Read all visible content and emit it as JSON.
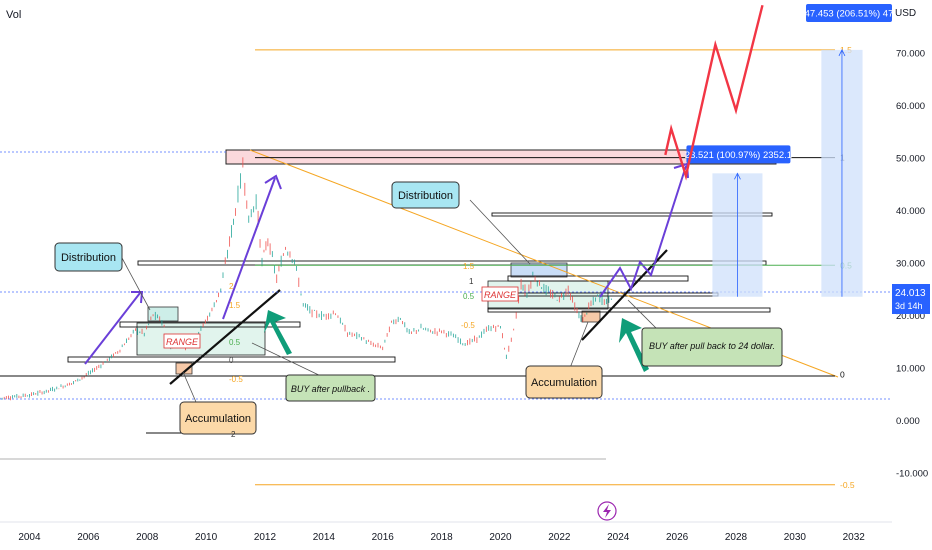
{
  "indicator_label": "Vol",
  "currency": "USD",
  "chart_data": {
    "type": "line",
    "title": "",
    "xlabel": "",
    "ylabel": "",
    "xlim": [
      2003.0,
      2033.3
    ],
    "ylim": [
      -19.0,
      80.0
    ],
    "x_ticks": [
      "2004",
      "2006",
      "2008",
      "2010",
      "2012",
      "2014",
      "2016",
      "2018",
      "2020",
      "2022",
      "2024",
      "2026",
      "2028",
      "2030",
      "2032"
    ],
    "y_ticks": [
      "70.000",
      "60.000",
      "50.000",
      "40.000",
      "30.000",
      "20.000",
      "10.000",
      "0.000",
      "-10.000"
    ],
    "last_price": {
      "value": 24.013,
      "label": "24.013",
      "countdown": "3d 14h"
    },
    "series": [
      {
        "values": [
          [
            2003.0,
            4.2
          ],
          [
            2003.5,
            4.5
          ],
          [
            2004.0,
            4.8
          ],
          [
            2004.5,
            5.4
          ],
          [
            2005.0,
            6.2
          ],
          [
            2005.5,
            7.2
          ],
          [
            2006.0,
            8.8
          ],
          [
            2006.5,
            10.8
          ],
          [
            2007.0,
            13.0
          ],
          [
            2007.3,
            15.0
          ],
          [
            2007.6,
            17.2
          ],
          [
            2007.9,
            16.5
          ],
          [
            2008.2,
            20.0
          ],
          [
            2008.5,
            19.0
          ],
          [
            2008.8,
            13.5
          ],
          [
            2009.0,
            15.0
          ],
          [
            2009.3,
            13.8
          ],
          [
            2009.6,
            15.8
          ],
          [
            2009.9,
            18.0
          ],
          [
            2010.2,
            21.0
          ],
          [
            2010.5,
            25.0
          ],
          [
            2010.8,
            34.0
          ],
          [
            2011.0,
            40.0
          ],
          [
            2011.25,
            48.5
          ],
          [
            2011.45,
            38.0
          ],
          [
            2011.7,
            42.0
          ],
          [
            2011.9,
            30.0
          ],
          [
            2012.1,
            34.5
          ],
          [
            2012.4,
            27.0
          ],
          [
            2012.7,
            33.0
          ],
          [
            2013.0,
            30.5
          ],
          [
            2013.3,
            22.0
          ],
          [
            2013.6,
            20.5
          ],
          [
            2014.0,
            19.8
          ],
          [
            2014.4,
            20.5
          ],
          [
            2014.8,
            16.5
          ],
          [
            2015.2,
            16.0
          ],
          [
            2015.6,
            14.5
          ],
          [
            2016.0,
            13.8
          ],
          [
            2016.3,
            18.5
          ],
          [
            2016.6,
            19.5
          ],
          [
            2016.9,
            16.5
          ],
          [
            2017.3,
            17.5
          ],
          [
            2017.7,
            16.8
          ],
          [
            2018.0,
            17.0
          ],
          [
            2018.4,
            16.0
          ],
          [
            2018.8,
            14.5
          ],
          [
            2019.2,
            15.5
          ],
          [
            2019.6,
            17.5
          ],
          [
            2020.0,
            17.8
          ],
          [
            2020.2,
            12.0
          ],
          [
            2020.45,
            17.0
          ],
          [
            2020.7,
            26.0
          ],
          [
            2020.9,
            24.0
          ],
          [
            2021.1,
            27.5
          ],
          [
            2021.4,
            25.5
          ],
          [
            2021.7,
            24.0
          ],
          [
            2022.0,
            23.0
          ],
          [
            2022.3,
            25.0
          ],
          [
            2022.6,
            20.5
          ],
          [
            2022.8,
            19.0
          ],
          [
            2023.0,
            21.5
          ],
          [
            2023.3,
            23.5
          ],
          [
            2023.6,
            22.5
          ],
          [
            2023.85,
            24.0
          ]
        ]
      },
      {
        "name": "projection",
        "values": [
          [
            2025.6,
            50.5
          ],
          [
            2025.8,
            55.5
          ],
          [
            2026.3,
            46.5
          ],
          [
            2027.3,
            71.5
          ],
          [
            2028.0,
            59.0
          ],
          [
            2028.9,
            79.0
          ]
        ]
      }
    ],
    "measures": [
      {
        "label": "23.521 (100.97%) 2352.1",
        "x": [
          2027.2,
          2028.9
        ],
        "y": [
          23.5,
          47.0
        ]
      },
      {
        "label": "47.453 (206.51%) 47",
        "x": [
          2030.9,
          2032.3
        ],
        "y": [
          23.5,
          70.5
        ]
      }
    ],
    "fib_levels": [
      {
        "label": "1.5",
        "value": 70.5
      },
      {
        "label": "1",
        "value": 50.0
      },
      {
        "label": "0.5",
        "value": 29.5
      },
      {
        "label": "0",
        "value": 8.7
      },
      {
        "label": "-0.5",
        "value": -12.3
      }
    ],
    "left_fib_labels": [
      "2",
      "1.5",
      "0.5",
      "0",
      "-0.5",
      "2"
    ],
    "mid_fib_labels": [
      "1.5",
      "1",
      "0.5",
      "-0.5"
    ],
    "annotations": {
      "distribution_left": "Distribution",
      "distribution_right": "Distribution",
      "accumulation_left": "Accumulation",
      "accumulation_right": "Accumulation",
      "range_left": "RANGE",
      "range_right": "RANGE",
      "buy_left": "BUY after pullback .",
      "buy_right": "BUY after pull back to 24 dollar."
    }
  },
  "colors": {
    "price_up": "#26a69a",
    "price_down": "#ef5350",
    "projection": "#f23645",
    "fib": "#f5a623",
    "fib_mid": "#4caf50",
    "arrow_purple": "#6a3fd8",
    "arrow_teal": "#0f9d79",
    "measure_fill": "#cfe0fb",
    "measure_label": "#2962ff",
    "price_label": "#2962ff",
    "zone_pink": "#fbd9dc",
    "distribution_fill": "#a8e6f2",
    "accumulation_fill": "#fcd9a8",
    "buy_fill": "#c5e3b7"
  },
  "icons": {
    "bolt": "lightning-icon"
  }
}
